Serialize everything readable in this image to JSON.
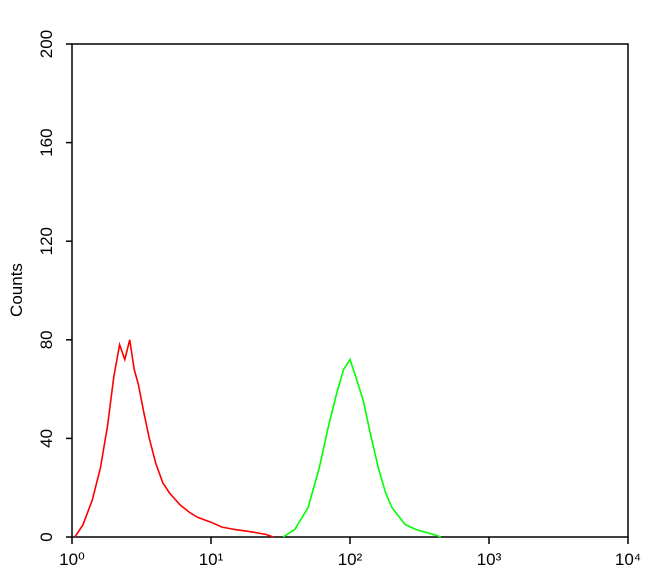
{
  "chart_data": {
    "type": "line",
    "y_label": "Counts",
    "xscale": "log",
    "xlim": [
      1,
      10000
    ],
    "xticks": [
      {
        "value": 1,
        "label": "10⁰"
      },
      {
        "value": 10,
        "label": "10¹"
      },
      {
        "value": 100,
        "label": "10²"
      },
      {
        "value": 1000,
        "label": "10³"
      },
      {
        "value": 10000,
        "label": "10⁴"
      }
    ],
    "ylim": [
      0,
      200
    ],
    "yticks": [
      0,
      40,
      80,
      120,
      160,
      200
    ],
    "series": [
      {
        "color": "#ff0000",
        "x": [
          1.05,
          1.2,
          1.4,
          1.6,
          1.8,
          2.0,
          2.2,
          2.4,
          2.6,
          2.8,
          3.0,
          3.3,
          3.6,
          4.0,
          4.5,
          5.0,
          6.0,
          7.0,
          8.0,
          10,
          12,
          15,
          20,
          25,
          28
        ],
        "values": [
          0,
          5,
          15,
          28,
          45,
          65,
          78,
          72,
          80,
          68,
          62,
          50,
          40,
          30,
          22,
          18,
          13,
          10,
          8,
          6,
          4,
          3,
          2,
          1,
          0
        ]
      },
      {
        "color": "#00ff00",
        "x": [
          33,
          40,
          50,
          60,
          70,
          80,
          90,
          100,
          110,
          125,
          140,
          160,
          180,
          200,
          250,
          300,
          400,
          450
        ],
        "values": [
          0,
          3,
          12,
          28,
          45,
          58,
          68,
          72,
          65,
          55,
          42,
          28,
          18,
          12,
          5,
          3,
          1,
          0
        ]
      }
    ]
  }
}
